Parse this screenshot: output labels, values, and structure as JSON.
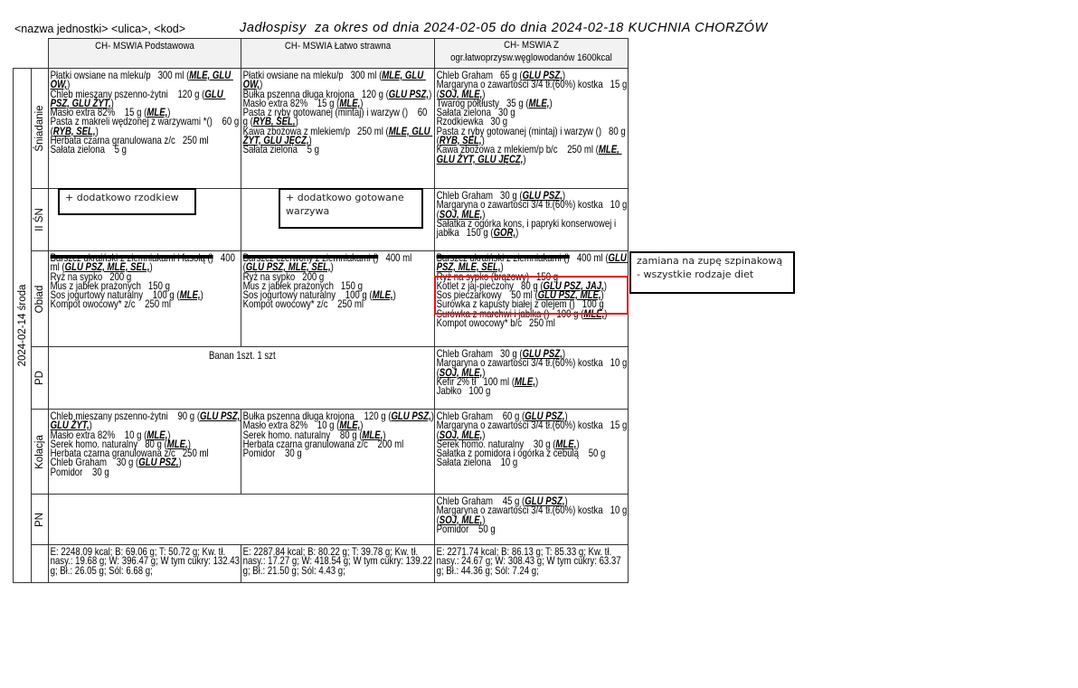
{
  "header": {
    "unit": "<nazwa jednostki> <ulica>, <kod>",
    "title": "Jadłospisy  za okres od dnia 2024-02-05 do dnia 2024-02-18 KUCHNIA CHORZÓW"
  },
  "table": {
    "columns": [
      "CH- MSWIA Podstawowa",
      "CH- MSWIA Łatwo strawna",
      "CH- MSWIA Z",
      "ogr.łatwoprzysw.węglowodanów 1600kcal"
    ],
    "date": "2024-02-14 środa",
    "rows": [
      {
        "label": "Śniadanie",
        "cells": [
          [
            {
              "t": "Płatki owsiane na mleku/p   300 ml",
              "a": "MLE, GLU OW,"
            },
            {
              "t": "Chleb mieszany pszenno-żytni    120 g",
              "a": "GLU PSZ, GLU ŻYT,"
            },
            {
              "t": "Masło extra 82%    15 g",
              "a": "MLE,"
            },
            {
              "t": "Pasta z makreli wędzonej z warzywami *()    60 g",
              "a": "RYB, SEL,"
            },
            {
              "t": "Herbata czarna granulowana z/c   250 ml"
            },
            {
              "t": "Sałata zielona    5 g"
            }
          ],
          [
            {
              "t": "Płatki owsiane na mleku/p   300 ml",
              "a": "MLE, GLU OW,"
            },
            {
              "t": "Bułka pszenna długa krojona   120 g",
              "a": "GLU PSZ,"
            },
            {
              "t": "Masło extra 82%    15 g",
              "a": "MLE,"
            },
            {
              "t": "Pasta z ryby gotowanej (mintaj) i warzyw ()    60 g",
              "a": "RYB, SEL,"
            },
            {
              "t": "Kawa zbożowa z mlekiem/p   250 ml",
              "a": "MLE, GLU ŻYT, GLU JĘCZ,"
            },
            {
              "t": "Sałata zielona    5 g"
            }
          ],
          [
            {
              "t": "Chleb Graham   65 g",
              "a": "GLU PSZ,"
            },
            {
              "t": "Margaryna o zawartości 3/4 tł.(60%) kostka   15 g",
              "a": "SOJ, MLE,"
            },
            {
              "t": "Twaróg półtłusty   35 g",
              "a": "MLE,"
            },
            {
              "t": "Sałata zielona   30 g"
            },
            {
              "t": "Rzodkiewka   30 g"
            },
            {
              "t": "Pasta z ryby gotowanej (mintaj) i warzyw ()   80 g",
              "a": "RYB, SEL,"
            },
            {
              "t": "Kawa zbożowa z mlekiem/p b/c    250 ml",
              "a": "MLE, GLU ŻYT, GLU JĘCZ,"
            }
          ]
        ]
      },
      {
        "label": "II ŚN",
        "cells": [
          [],
          [],
          [
            {
              "t": "Chleb Graham   30 g",
              "a": "GLU PSZ,"
            },
            {
              "t": "Margaryna o zawartości 3/4 tł.(60%) kostka   10 g",
              "a": "SOJ, MLE,"
            },
            {
              "t": "Sałatka z ogórka kons, i papryki konserwowej i jabłka   150 g",
              "a": "GOR,"
            }
          ]
        ]
      },
      {
        "label": "Obiad",
        "cells": [
          [
            {
              "st": "Barszcz ukraiński z ziemniakami i fasolą ()",
              "t": "   400 ml",
              "a": "GLU PSZ, MLE, SEL,"
            },
            {
              "t": "Ryż na sypko   200 g"
            },
            {
              "t": "Mus z jabłek prażonych   150 g"
            },
            {
              "t": "Sos jogurtowy naturalny    100 g",
              "a": "MLE,"
            },
            {
              "t": "Kompot owocowy* z/c    250 ml"
            }
          ],
          [
            {
              "st": "Barszcz czerwony z ziemniakami ()",
              "t": "   400 ml",
              "a": "GLU PSZ, MLE, SEL,"
            },
            {
              "t": "Ryż na sypko   200 g"
            },
            {
              "t": "Mus z jabłek prażonych   150 g"
            },
            {
              "t": "Sos jogurtowy naturalny    100 g",
              "a": "MLE,"
            },
            {
              "t": "Kompot owocowy* z/c    250 ml"
            }
          ],
          [
            {
              "st": "Barszcz ukraiński z ziemniakami ()",
              "t": "   400 ml",
              "a": "GLU PSZ, MLE, SEL,"
            },
            {
              "t": "Ryż na sypko (brązowy)   150 g"
            },
            {
              "t": "Kotlet z jaj-pieczony   80 g",
              "a": "GLU PSZ, JAJ,"
            },
            {
              "t": "Sos pieczarkowy    50 ml",
              "a": "GLU PSZ, MLE,"
            },
            {
              "t": "Surówka z kapusty białej z olejem ()   100 g"
            },
            {
              "t": "Surówka z marchwi i jabłka ()   100 g",
              "a": "MLE,"
            },
            {
              "t": "Kompot owocowy* b/c   250 ml"
            }
          ]
        ]
      },
      {
        "label": "PD",
        "span": "Banan 1szt.   1 szt",
        "cells": [
          [],
          [],
          [
            {
              "t": "Chleb Graham   30 g",
              "a": "GLU PSZ,"
            },
            {
              "t": "Margaryna o zawartości 3/4 tł.(60%) kostka   10 g",
              "a": "SOJ, MLE,"
            },
            {
              "t": "Kefir 2% tł   100 ml",
              "a": "MLE,"
            },
            {
              "t": "Jabłko   100 g"
            }
          ]
        ]
      },
      {
        "label": "Kolacja",
        "cells": [
          [
            {
              "t": "Chleb mieszany pszenno-żytni    90 g",
              "a": "GLU PSZ, GLU ŻYT,"
            },
            {
              "t": "Masło extra 82%    10 g",
              "a": "MLE,"
            },
            {
              "t": "Serek homo. naturalny   80 g",
              "a": "MLE,"
            },
            {
              "t": "Herbata czarna granulowana z/c   250 ml"
            },
            {
              "t": "Chleb Graham    30 g",
              "a": "GLU PSZ,"
            },
            {
              "t": "Pomidor    30 g"
            }
          ],
          [
            {
              "t": "Bułka pszenna długa krojona    120 g",
              "a": "GLU PSZ,"
            },
            {
              "t": "Masło extra 82%    10 g",
              "a": "MLE,"
            },
            {
              "t": "Serek homo. naturalny    80 g",
              "a": "MLE,"
            },
            {
              "t": "Herbata czarna granulowana z/c    200 ml"
            },
            {
              "t": "Pomidor    30 g"
            }
          ],
          [
            {
              "t": "Chleb Graham    60 g",
              "a": "GLU PSZ,"
            },
            {
              "t": "Margaryna o zawartości 3/4 tł.(60%) kostka   15 g",
              "a": "SOJ, MLE,"
            },
            {
              "t": "Serek homo. naturalny    30 g",
              "a": "MLE,"
            },
            {
              "t": "Sałatka z pomidora i ogórka z cebulą    50 g"
            },
            {
              "t": "Sałata zielona    10 g"
            }
          ]
        ]
      },
      {
        "label": "PN",
        "span": "",
        "cells": [
          [],
          [],
          [
            {
              "t": "Chleb Graham    45 g",
              "a": "GLU PSZ,"
            },
            {
              "t": "Margaryna o zawartości 3/4 tł.(60%) kostka   10 g",
              "a": "SOJ, MLE,"
            },
            {
              "t": "Pomidor    50 g"
            }
          ]
        ]
      },
      {
        "label": "",
        "cells": [
          [
            {
              "t": "E: 2248.09 kcal; B: 69.06 g; T: 50.72 g; Kw. tł. nasy.: 19.68 g; W: 396.47 g; W tym cukry: 132.43 g; Bł.: 26.05 g; Sól: 6.68 g;"
            }
          ],
          [
            {
              "t": "E: 2287.84 kcal; B: 80.22 g; T: 39.78 g; Kw. tł. nasy.: 17.27 g; W: 418.54 g; W tym cukry: 139.22 g; Bł.: 21.50 g; Sól: 4.43 g;"
            }
          ],
          [
            {
              "t": "E: 2271.74 kcal; B: 86.13 g; T: 85.33 g; Kw. tł. nasy.: 24.67 g; W: 308.43 g; W tym cukry: 63.37 g; Bł.: 44.36 g; Sól: 7.24 g;"
            }
          ]
        ]
      }
    ]
  },
  "notes": [
    "+ dodatkowo rzodkiew",
    "+ dodatkowo gotowane warzywa",
    "zamiana na zupę szpinakową - wszystkie rodzaje diet"
  ],
  "highlight_color": "#e0141e"
}
